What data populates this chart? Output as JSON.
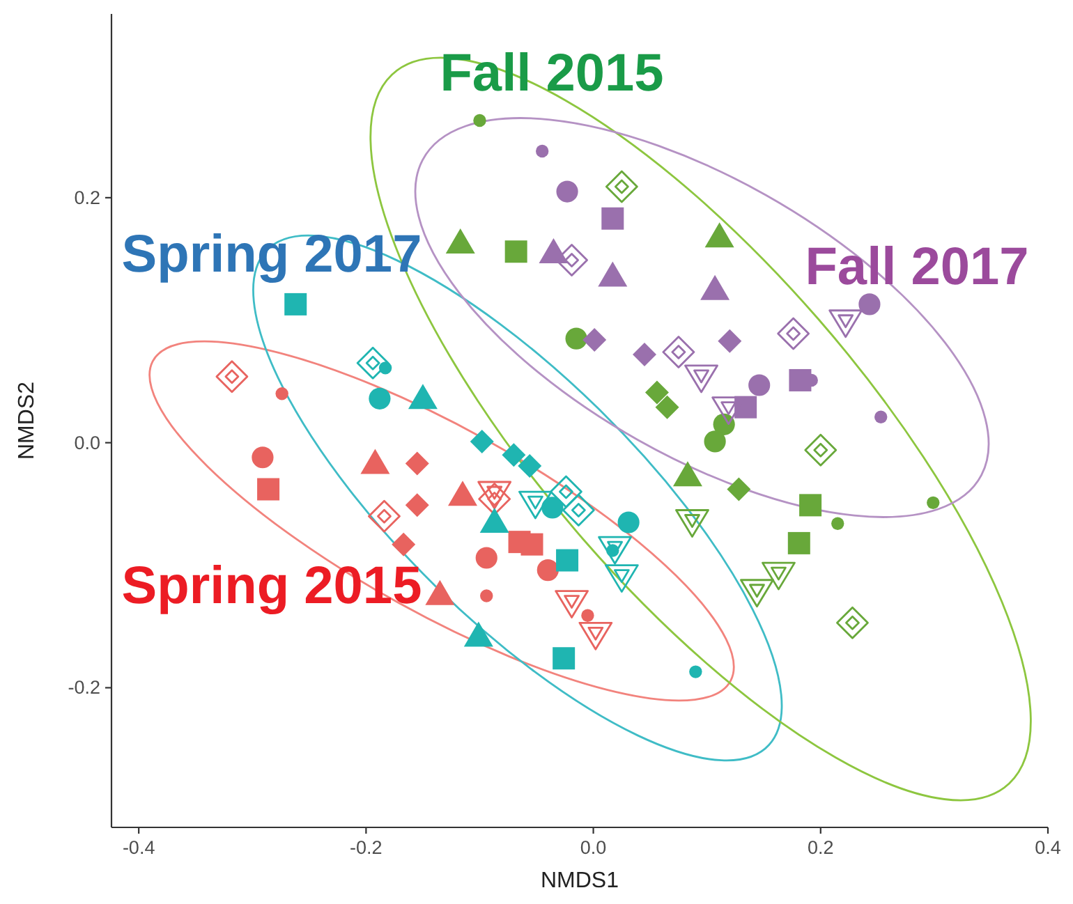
{
  "chart_data": {
    "type": "scatter",
    "xlabel": "NMDS1",
    "ylabel": "NMDS2",
    "xlim": [
      -0.424,
      0.4
    ],
    "ylim": [
      -0.314,
      0.35
    ],
    "xticks": [
      -0.4,
      -0.2,
      {
        "value": 0,
        "label": "0.0"
      },
      0.2,
      0.4
    ],
    "yticks": [
      -0.2,
      {
        "value": 0,
        "label": "0.0"
      },
      0.2
    ],
    "annotations": [
      "Spring 2015",
      "Spring 2017",
      "Fall 2015",
      "Fall 2017"
    ],
    "series": [
      {
        "marker": "circle",
        "color": "#e8635f",
        "x": [
          -0.291,
          -0.094,
          -0.04
        ],
        "values": [
          -0.012,
          -0.094,
          -0.104
        ]
      },
      {
        "marker": "circle-small",
        "color": "#e8635f",
        "x": [
          -0.274,
          -0.094,
          -0.005
        ],
        "values": [
          0.04,
          -0.125,
          -0.141
        ]
      },
      {
        "marker": "square",
        "color": "#e8635f",
        "x": [
          -0.286,
          -0.065,
          -0.054
        ],
        "values": [
          -0.038,
          -0.081,
          -0.083
        ]
      },
      {
        "marker": "triangle",
        "color": "#e8635f",
        "x": [
          -0.192,
          -0.115,
          -0.135
        ],
        "values": [
          -0.017,
          -0.043,
          -0.124
        ]
      },
      {
        "marker": "diamond",
        "color": "#e8635f",
        "x": [
          -0.155,
          -0.155,
          -0.167
        ],
        "values": [
          -0.017,
          -0.051,
          -0.083
        ]
      },
      {
        "marker": "diamond-open",
        "color": "#e8635f",
        "x": [
          -0.318,
          -0.184,
          -0.087
        ],
        "values": [
          0.054,
          -0.06,
          -0.046
        ]
      },
      {
        "marker": "triangle-down-open",
        "color": "#e8635f",
        "x": [
          -0.087,
          -0.019,
          0.002
        ],
        "values": [
          -0.04,
          -0.129,
          -0.155
        ]
      },
      {
        "marker": "circle",
        "color": "#1fb5b1",
        "x": [
          -0.188,
          -0.036,
          0.031
        ],
        "values": [
          0.036,
          -0.053,
          -0.065
        ]
      },
      {
        "marker": "circle-small",
        "color": "#1fb5b1",
        "x": [
          -0.183,
          0.017,
          0.09
        ],
        "values": [
          0.061,
          -0.088,
          -0.187
        ]
      },
      {
        "marker": "square",
        "color": "#1fb5b1",
        "x": [
          -0.262,
          -0.023,
          -0.026
        ],
        "values": [
          0.113,
          -0.096,
          -0.176
        ]
      },
      {
        "marker": "triangle",
        "color": "#1fb5b1",
        "x": [
          -0.15,
          -0.087,
          -0.101
        ],
        "values": [
          0.036,
          -0.065,
          -0.158
        ]
      },
      {
        "marker": "diamond",
        "color": "#1fb5b1",
        "x": [
          -0.098,
          -0.07,
          -0.056
        ],
        "values": [
          0.001,
          -0.01,
          -0.019
        ]
      },
      {
        "marker": "diamond-open",
        "color": "#1fb5b1",
        "x": [
          -0.194,
          -0.024,
          -0.013
        ],
        "values": [
          0.065,
          -0.04,
          -0.055
        ]
      },
      {
        "marker": "triangle-down-open",
        "color": "#1fb5b1",
        "x": [
          -0.051,
          0.019,
          0.025
        ],
        "values": [
          -0.048,
          -0.085,
          -0.108
        ]
      },
      {
        "marker": "circle",
        "color": "#68a83a",
        "x": [
          -0.015,
          0.115,
          0.107
        ],
        "values": [
          0.085,
          0.015,
          0.001
        ]
      },
      {
        "marker": "circle-small",
        "color": "#68a83a",
        "x": [
          -0.1,
          0.215,
          0.299
        ],
        "values": [
          0.263,
          -0.066,
          -0.049
        ]
      },
      {
        "marker": "square",
        "color": "#68a83a",
        "x": [
          -0.068,
          0.191,
          0.181
        ],
        "values": [
          0.156,
          -0.051,
          -0.082
        ]
      },
      {
        "marker": "triangle",
        "color": "#68a83a",
        "x": [
          -0.117,
          0.111,
          0.083
        ],
        "values": [
          0.163,
          0.168,
          -0.027
        ]
      },
      {
        "marker": "diamond",
        "color": "#68a83a",
        "x": [
          0.056,
          0.065,
          0.128
        ],
        "values": [
          0.041,
          0.029,
          -0.038
        ]
      },
      {
        "marker": "diamond-open",
        "color": "#68a83a",
        "x": [
          0.025,
          0.2,
          0.228
        ],
        "values": [
          0.209,
          -0.006,
          -0.147
        ]
      },
      {
        "marker": "triangle-down-open",
        "color": "#68a83a",
        "x": [
          0.087,
          0.163,
          0.144
        ],
        "values": [
          -0.063,
          -0.106,
          -0.12
        ]
      },
      {
        "marker": "circle",
        "color": "#9a70ad",
        "x": [
          -0.023,
          0.243,
          0.146
        ],
        "values": [
          0.205,
          0.113,
          0.047
        ]
      },
      {
        "marker": "circle-small",
        "color": "#9a70ad",
        "x": [
          -0.045,
          0.192,
          0.253
        ],
        "values": [
          0.238,
          0.051,
          0.021
        ]
      },
      {
        "marker": "square",
        "color": "#9a70ad",
        "x": [
          0.017,
          0.182,
          0.134
        ],
        "values": [
          0.183,
          0.051,
          0.029
        ]
      },
      {
        "marker": "triangle",
        "color": "#9a70ad",
        "x": [
          -0.035,
          0.017,
          0.107
        ],
        "values": [
          0.155,
          0.136,
          0.125
        ]
      },
      {
        "marker": "diamond",
        "color": "#9a70ad",
        "x": [
          0.001,
          0.045,
          0.12
        ],
        "values": [
          0.084,
          0.072,
          0.083
        ]
      },
      {
        "marker": "diamond-open",
        "color": "#9a70ad",
        "x": [
          -0.019,
          0.176,
          0.075
        ],
        "values": [
          0.149,
          0.089,
          0.074
        ]
      },
      {
        "marker": "triangle-down-open",
        "color": "#9a70ad",
        "x": [
          0.222,
          0.095,
          0.119
        ],
        "values": [
          0.1,
          0.055,
          0.029
        ]
      }
    ]
  }
}
